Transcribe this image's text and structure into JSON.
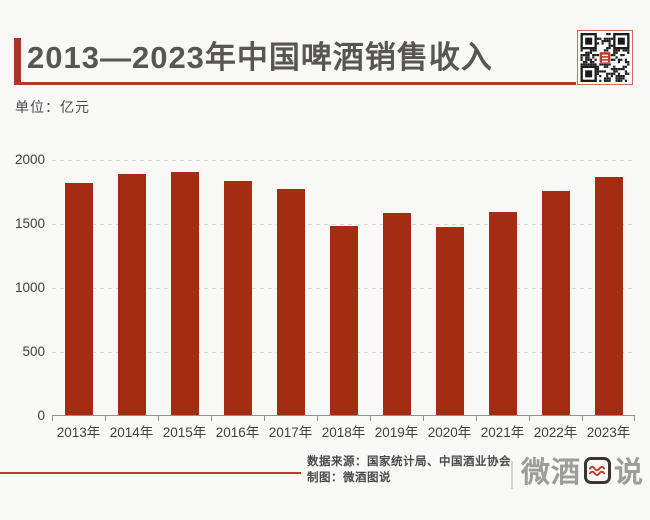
{
  "header": {
    "title": "2013—2023年中国啤酒销售收入",
    "unit_label": "单位：亿元"
  },
  "chart_data": {
    "type": "bar",
    "title": "2013—2023年中国啤酒销售收入",
    "unit": "亿元",
    "categories": [
      "2013年",
      "2014年",
      "2015年",
      "2016年",
      "2017年",
      "2018年",
      "2019年",
      "2020年",
      "2021年",
      "2022年",
      "2023年"
    ],
    "values": [
      1814,
      1886,
      1897,
      1830,
      1767,
      1473,
      1582,
      1469,
      1585,
      1751,
      1863
    ],
    "ylim": [
      0,
      2000
    ],
    "yticks": [
      0,
      500,
      1000,
      1500,
      2000
    ],
    "grid": "horizontal-dashed",
    "legend": "none",
    "bar_color": "#a32c13"
  },
  "footer": {
    "source_line": "数据来源：国家统计局、中国酒业协会",
    "credit_line": "制图：微酒图说",
    "logo": {
      "prefix": "微酒",
      "boxed_char": "图",
      "suffix": "说"
    }
  },
  "colors": {
    "background": "#f8f8f7",
    "accent_red": "#b23a2a",
    "bar_red": "#a32c13",
    "title_gray": "#585655"
  }
}
